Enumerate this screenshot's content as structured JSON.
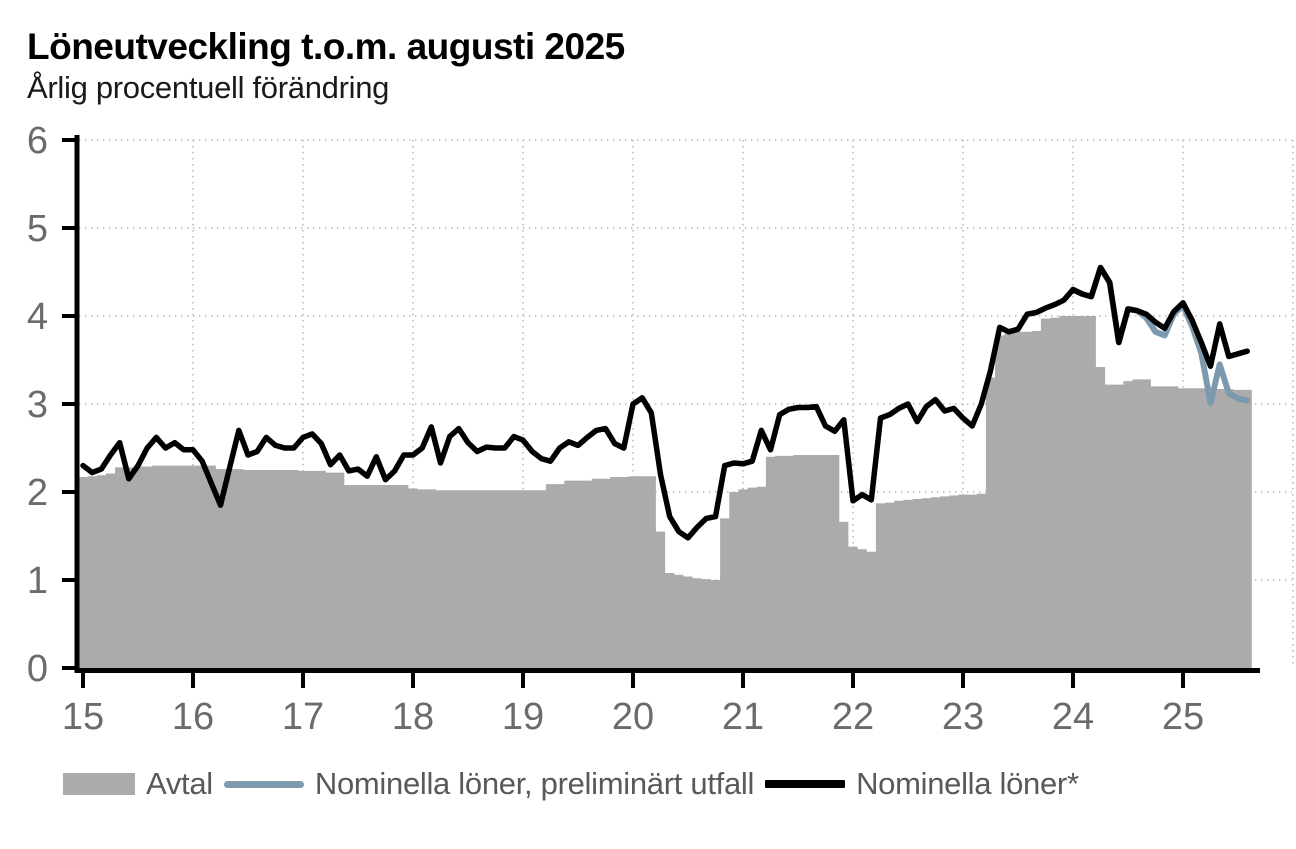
{
  "chart_data": {
    "type": "area+line",
    "title": "Löneutveckling t.o.m. augusti 2025",
    "subtitle": "Årlig procentuell förändring",
    "frequency": "monthly",
    "x_axis": {
      "start": "2015-01",
      "end": "2025-08",
      "tick_labels": [
        "15",
        "16",
        "17",
        "18",
        "19",
        "20",
        "21",
        "22",
        "23",
        "24",
        "25"
      ]
    },
    "y_axis": {
      "min": 0,
      "max": 6,
      "tick_labels": [
        "0",
        "1",
        "2",
        "3",
        "4",
        "5",
        "6"
      ],
      "grid": "dotted"
    },
    "legend": [
      {
        "label": "Avtal",
        "color": "#ABABAB",
        "type": "area"
      },
      {
        "label": "Nominella löner, preliminärt utfall",
        "color": "#7C99AD",
        "type": "line"
      },
      {
        "label": "Nominella löner*",
        "color": "#000000",
        "type": "line"
      }
    ],
    "series": [
      {
        "name": "Avtal",
        "key": "avtal-area",
        "type": "area",
        "color": "#ABABAB",
        "start_index": 0,
        "values": [
          2.17,
          2.18,
          2.19,
          2.21,
          2.28,
          2.28,
          2.29,
          2.29,
          2.3,
          2.3,
          2.3,
          2.3,
          2.3,
          2.3,
          2.3,
          2.26,
          2.26,
          2.26,
          2.25,
          2.25,
          2.25,
          2.25,
          2.25,
          2.25,
          2.24,
          2.24,
          2.24,
          2.22,
          2.22,
          2.08,
          2.08,
          2.08,
          2.08,
          2.08,
          2.08,
          2.08,
          2.04,
          2.03,
          2.03,
          2.02,
          2.02,
          2.02,
          2.02,
          2.02,
          2.02,
          2.02,
          2.02,
          2.02,
          2.02,
          2.02,
          2.02,
          2.09,
          2.09,
          2.13,
          2.13,
          2.13,
          2.15,
          2.15,
          2.17,
          2.17,
          2.18,
          2.18,
          2.18,
          1.55,
          1.08,
          1.06,
          1.04,
          1.02,
          1.01,
          1.0,
          1.7,
          2.0,
          2.03,
          2.05,
          2.06,
          2.4,
          2.41,
          2.41,
          2.42,
          2.42,
          2.42,
          2.42,
          2.42,
          1.66,
          1.38,
          1.35,
          1.32,
          1.87,
          1.88,
          1.9,
          1.91,
          1.92,
          1.93,
          1.94,
          1.95,
          1.96,
          1.97,
          1.97,
          1.98,
          3.3,
          3.78,
          3.8,
          3.82,
          3.82,
          3.83,
          3.97,
          3.98,
          4.0,
          4.0,
          4.0,
          4.0,
          3.42,
          3.22,
          3.22,
          3.26,
          3.28,
          3.28,
          3.2,
          3.2,
          3.2,
          3.18,
          3.18,
          3.18,
          3.17,
          3.17,
          3.17,
          3.16,
          3.16
        ]
      },
      {
        "name": "Nominella löner, preliminärt utfall",
        "key": "prelim-line",
        "type": "line",
        "color": "#7C99AD",
        "width": 6,
        "start_index": 108,
        "values": [
          4.3,
          4.25,
          4.22,
          4.55,
          4.38,
          3.7,
          4.08,
          4.06,
          3.98,
          3.82,
          3.78,
          4.02,
          4.12,
          3.88,
          3.58,
          3.01,
          3.45,
          3.12,
          3.06,
          3.04
        ]
      },
      {
        "name": "Nominella löner*",
        "key": "nominal-line",
        "type": "line",
        "color": "#000000",
        "width": 5.5,
        "start_index": 0,
        "values": [
          2.3,
          2.22,
          2.26,
          2.42,
          2.56,
          2.15,
          2.3,
          2.5,
          2.62,
          2.5,
          2.56,
          2.48,
          2.48,
          2.35,
          2.1,
          1.85,
          2.28,
          2.7,
          2.42,
          2.46,
          2.62,
          2.53,
          2.5,
          2.5,
          2.62,
          2.66,
          2.55,
          2.31,
          2.42,
          2.24,
          2.26,
          2.18,
          2.4,
          2.14,
          2.24,
          2.42,
          2.42,
          2.5,
          2.74,
          2.33,
          2.63,
          2.72,
          2.56,
          2.46,
          2.51,
          2.5,
          2.5,
          2.63,
          2.59,
          2.46,
          2.38,
          2.35,
          2.5,
          2.57,
          2.53,
          2.62,
          2.7,
          2.72,
          2.55,
          2.5,
          3.0,
          3.07,
          2.9,
          2.2,
          1.72,
          1.55,
          1.48,
          1.6,
          1.7,
          1.72,
          2.3,
          2.33,
          2.32,
          2.35,
          2.7,
          2.48,
          2.88,
          2.94,
          2.96,
          2.96,
          2.97,
          2.75,
          2.69,
          2.82,
          1.9,
          1.97,
          1.91,
          2.84,
          2.88,
          2.95,
          3.0,
          2.8,
          2.97,
          3.05,
          2.92,
          2.95,
          2.84,
          2.75,
          3.0,
          3.38,
          3.87,
          3.82,
          3.85,
          4.02,
          4.04,
          4.09,
          4.13,
          4.18,
          4.3,
          4.25,
          4.22,
          4.55,
          4.38,
          3.7,
          4.08,
          4.06,
          4.02,
          3.93,
          3.86,
          4.05,
          4.15,
          3.95,
          3.7,
          3.43,
          3.91,
          3.54,
          3.57,
          3.6
        ]
      }
    ]
  }
}
